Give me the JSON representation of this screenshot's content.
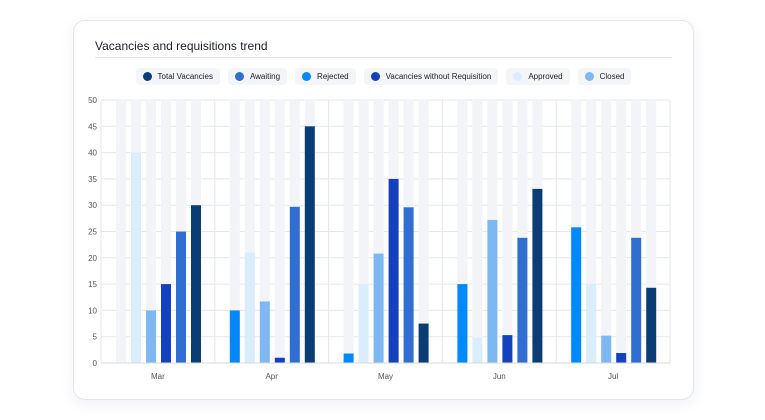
{
  "chart_data": {
    "type": "bar",
    "title": "Vacancies and requisitions trend",
    "categories": [
      "Mar",
      "Apr",
      "May",
      "Jun",
      "Jul"
    ],
    "ylim": [
      0,
      50
    ],
    "yticks": [
      0,
      5,
      10,
      15,
      20,
      25,
      30,
      35,
      40,
      45,
      50
    ],
    "grid": true,
    "legend_placement": "top",
    "legend": [
      {
        "name": "Total Vacancies",
        "color": "#0b3d75"
      },
      {
        "name": "Awaiting",
        "color": "#316ed2"
      },
      {
        "name": "Rejected",
        "color": "#0088ff"
      },
      {
        "name": "Vacancies without Requisition",
        "color": "#1341c0"
      },
      {
        "name": "Approved",
        "color": "#daedfd"
      },
      {
        "name": "Closed",
        "color": "#7db8f2"
      }
    ],
    "series": [
      {
        "name": "Rejected",
        "color": "#0088ff",
        "values": [
          0,
          10,
          1.8,
          15,
          25.8
        ]
      },
      {
        "name": "Approved",
        "color": "#daedfd",
        "values": [
          40,
          21,
          15,
          4.8,
          15
        ]
      },
      {
        "name": "Closed",
        "color": "#7db8f2",
        "values": [
          10,
          11.7,
          20.8,
          27.2,
          5.2
        ]
      },
      {
        "name": "Vacancies without Requisition",
        "color": "#1341c0",
        "values": [
          15,
          1,
          35,
          5.3,
          1.9
        ]
      },
      {
        "name": "Awaiting",
        "color": "#316ed2",
        "values": [
          25,
          29.7,
          29.6,
          23.8,
          23.8
        ]
      },
      {
        "name": "Total Vacancies",
        "color": "#0b3d75",
        "values": [
          30,
          45,
          7.5,
          33.1,
          14.3
        ]
      }
    ],
    "background_bar_color": "#f2f4f8"
  }
}
